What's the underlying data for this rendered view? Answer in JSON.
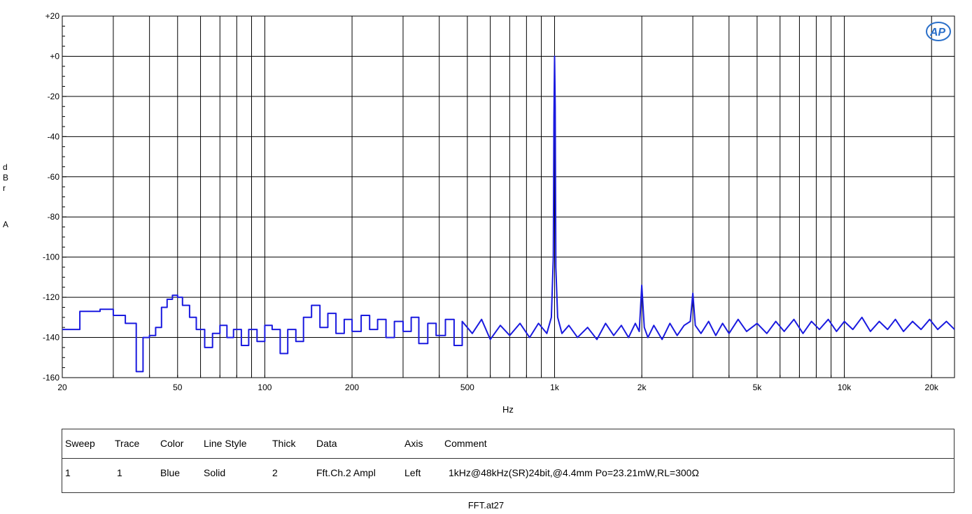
{
  "chart_data": {
    "type": "line",
    "x_scale": "log",
    "xlabel": "Hz",
    "ylabel": "dBr A",
    "xlim": [
      20,
      24000
    ],
    "ylim": [
      -160,
      20
    ],
    "grid": true,
    "x_ticks": [
      {
        "value": 20,
        "label": "20"
      },
      {
        "value": 50,
        "label": "50"
      },
      {
        "value": 100,
        "label": "100"
      },
      {
        "value": 200,
        "label": "200"
      },
      {
        "value": 500,
        "label": "500"
      },
      {
        "value": 1000,
        "label": "1k"
      },
      {
        "value": 2000,
        "label": "2k"
      },
      {
        "value": 5000,
        "label": "5k"
      },
      {
        "value": 10000,
        "label": "10k"
      },
      {
        "value": 20000,
        "label": "20k"
      }
    ],
    "y_ticks": [
      {
        "value": 20,
        "label": "+20"
      },
      {
        "value": 0,
        "label": "+0"
      },
      {
        "value": -20,
        "label": "-20"
      },
      {
        "value": -40,
        "label": "-40"
      },
      {
        "value": -60,
        "label": "-60"
      },
      {
        "value": -80,
        "label": "-80"
      },
      {
        "value": -100,
        "label": "-100"
      },
      {
        "value": -120,
        "label": "-120"
      },
      {
        "value": -140,
        "label": "-140"
      },
      {
        "value": -160,
        "label": "-160"
      }
    ],
    "series": [
      {
        "color": "#1a1adf",
        "x": [
          20,
          23,
          27,
          30,
          33,
          36,
          38,
          40,
          42,
          44,
          46,
          48,
          50,
          52,
          55,
          58,
          62,
          66,
          70,
          74,
          78,
          83,
          88,
          94,
          100,
          106,
          113,
          120,
          128,
          136,
          145,
          155,
          165,
          176,
          188,
          200,
          215,
          230,
          245,
          262,
          280,
          300,
          320,
          340,
          365,
          390,
          420,
          450,
          480,
          520,
          560,
          600,
          650,
          700,
          760,
          820,
          880,
          940,
          975,
          990,
          995,
          1000,
          1005,
          1010,
          1025,
          1060,
          1120,
          1200,
          1300,
          1400,
          1500,
          1600,
          1700,
          1800,
          1900,
          1960,
          2000,
          2040,
          2100,
          2200,
          2350,
          2500,
          2650,
          2800,
          2940,
          3000,
          3060,
          3200,
          3400,
          3600,
          3800,
          4000,
          4300,
          4600,
          5000,
          5400,
          5800,
          6200,
          6700,
          7200,
          7700,
          8200,
          8800,
          9400,
          10000,
          10700,
          11500,
          12300,
          13200,
          14100,
          15000,
          16000,
          17200,
          18400,
          19700,
          21000,
          22500,
          24000
        ],
        "y": [
          -136,
          -127,
          -126,
          -129,
          -133,
          -157,
          -140,
          -139,
          -135,
          -125,
          -121,
          -119,
          -120,
          -124,
          -130,
          -136,
          -145,
          -138,
          -134,
          -140,
          -136,
          -144,
          -136,
          -142,
          -134,
          -136,
          -148,
          -136,
          -142,
          -130,
          -124,
          -135,
          -128,
          -138,
          -131,
          -137,
          -129,
          -136,
          -131,
          -140,
          -132,
          -137,
          -130,
          -143,
          -133,
          -139,
          -131,
          -144,
          -132,
          -138,
          -131,
          -141,
          -134,
          -139,
          -133,
          -140,
          -133,
          -138,
          -130,
          -100,
          -30,
          0,
          -25,
          -105,
          -130,
          -138,
          -134,
          -140,
          -135,
          -141,
          -133,
          -139,
          -134,
          -140,
          -133,
          -137,
          -114,
          -135,
          -140,
          -134,
          -141,
          -133,
          -139,
          -134,
          -132,
          -118,
          -134,
          -138,
          -132,
          -139,
          -133,
          -138,
          -131,
          -137,
          -133,
          -138,
          -132,
          -137,
          -131,
          -138,
          -132,
          -136,
          -131,
          -137,
          -132,
          -136,
          -130,
          -137,
          -132,
          -136,
          -131,
          -137,
          -132,
          -136,
          -131,
          -136,
          -132,
          -136
        ]
      }
    ]
  },
  "legend": {
    "headers": [
      "Sweep",
      "Trace",
      "Color",
      "Line Style",
      "Thick",
      "Data",
      "Axis",
      "Comment"
    ],
    "row": [
      "1",
      "1",
      "Blue",
      "Solid",
      "2",
      "Fft.Ch.2 Ampl",
      "Left",
      "1kHz@48kHz(SR)24bit,@4.4mm Po=23.21mW,RL=300Ω"
    ]
  },
  "footer": "FFT.at27",
  "logo_text": "AP",
  "ylabel_letters": [
    "d",
    "B",
    "r",
    "A"
  ]
}
